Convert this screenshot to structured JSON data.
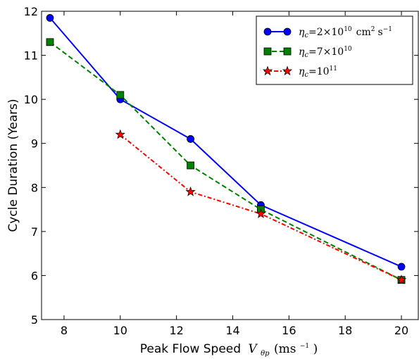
{
  "chart_data": {
    "type": "line",
    "xlabel": "Peak Flow Speed",
    "xlabel_math": "V",
    "xlabel_math_sub": "θp",
    "xlabel_unit": "(ms",
    "xlabel_unit_sup": "−1",
    "xlabel_unit_close": ")",
    "ylabel": "Cycle Duration (Years)",
    "xlim": [
      7.2,
      20.6
    ],
    "ylim": [
      5,
      12
    ],
    "xticks": [
      8,
      10,
      12,
      14,
      16,
      18,
      20
    ],
    "yticks": [
      5,
      6,
      7,
      8,
      9,
      10,
      11,
      12
    ],
    "legend_position": "top-right",
    "series": [
      {
        "key": "s1",
        "color": "#0000ff",
        "linestyle": "solid",
        "marker": "circle",
        "legend": {
          "eta": "η",
          "eta_sub": "c",
          "eq": "=2×10",
          "exp": "10",
          "unit1": "cm",
          "unit1_sup": "2",
          "unit2": "s",
          "unit2_sup": "−1"
        },
        "x": [
          7.5,
          10,
          12.5,
          15,
          20
        ],
        "y": [
          11.85,
          10.0,
          9.1,
          7.6,
          6.2
        ]
      },
      {
        "key": "s2",
        "color": "#008000",
        "linestyle": "dashed",
        "marker": "square",
        "legend": {
          "eta": "η",
          "eta_sub": "c",
          "eq": "=7×10",
          "exp": "10"
        },
        "x": [
          7.5,
          10,
          12.5,
          15,
          20
        ],
        "y": [
          11.3,
          10.1,
          8.5,
          7.5,
          5.9
        ]
      },
      {
        "key": "s3",
        "color": "#ff0000",
        "linestyle": "dashdot",
        "marker": "star",
        "legend": {
          "eta": "η",
          "eta_sub": "c",
          "eq": "=10",
          "exp": "11"
        },
        "x": [
          10,
          12.5,
          15,
          20
        ],
        "y": [
          9.2,
          7.9,
          7.4,
          5.9
        ]
      }
    ]
  }
}
